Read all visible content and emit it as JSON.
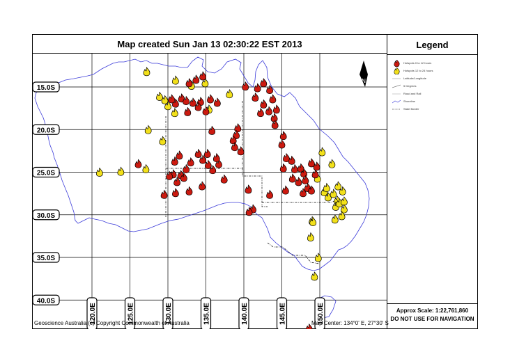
{
  "title": "Map created Sun Jan 13 02:30:22 EST 2013",
  "legend": {
    "title": "Legend",
    "items": [
      {
        "label": "Hotspots 0 to 12 hours",
        "icon": "red-fire-icon"
      },
      {
        "label": "Hotspots 12 to 24 hours",
        "icon": "yellow-fire-icon"
      },
      {
        "label": "Latitude/Longitude",
        "icon": "grid-line-icon"
      },
      {
        "label": "5 Degrees",
        "icon": "grid-line-icon"
      },
      {
        "label": "Road and Rail",
        "icon": "road-line-icon"
      },
      {
        "label": "Shoreline",
        "icon": "shoreline-icon"
      },
      {
        "label": "State Border",
        "icon": "border-line-icon"
      }
    ]
  },
  "scale": {
    "text": "Approx Scale: 1:22,761,860",
    "warning": "DO NOT USE FOR NAVIGATION"
  },
  "credit": "Geoscience Australia (c) Copyright Commonwealth of Australia",
  "center": "Map Center: 134°0' E, 27°30' S",
  "lat_labels": [
    "15.0S",
    "20.0S",
    "25.0S",
    "30.0S",
    "35.0S",
    "40.0S"
  ],
  "lon_labels": [
    "120.0E",
    "125.0E",
    "130.0E",
    "135.0E",
    "140.0E",
    "145.0E",
    "150.0E"
  ],
  "north_arrow": "N",
  "colors": {
    "recent_fire": "#cc1a10",
    "older_fire": "#f2e01a",
    "coastline": "#3b3bd9",
    "grid": "#000000"
  },
  "hotspots_recent": [
    [
      134.6,
      13.7
    ],
    [
      133.7,
      14.1
    ],
    [
      132.8,
      14.5
    ],
    [
      140.2,
      14.9
    ],
    [
      142.6,
      14.5
    ],
    [
      141.8,
      15.1
    ],
    [
      143.4,
      15.3
    ],
    [
      131.8,
      16.3
    ],
    [
      132.4,
      16.6
    ],
    [
      133.3,
      16.8
    ],
    [
      134.3,
      16.7
    ],
    [
      135.6,
      16.4
    ],
    [
      136.5,
      16.8
    ],
    [
      131.0,
      16.9
    ],
    [
      130.5,
      16.4
    ],
    [
      134.0,
      17.3
    ],
    [
      135.0,
      17.8
    ],
    [
      132.6,
      17.9
    ],
    [
      141.5,
      16.2
    ],
    [
      142.6,
      17.0
    ],
    [
      143.3,
      17.8
    ],
    [
      142.2,
      18.0
    ],
    [
      144.0,
      18.6
    ],
    [
      144.3,
      17.6
    ],
    [
      143.8,
      16.4
    ],
    [
      135.8,
      20.1
    ],
    [
      139.2,
      19.8
    ],
    [
      139.0,
      20.6
    ],
    [
      138.6,
      21.2
    ],
    [
      138.8,
      22.0
    ],
    [
      139.6,
      22.5
    ],
    [
      145.2,
      20.7
    ],
    [
      144.1,
      19.4
    ],
    [
      145.0,
      21.7
    ],
    [
      145.6,
      23.3
    ],
    [
      146.3,
      23.6
    ],
    [
      146.7,
      24.6
    ],
    [
      147.5,
      24.5
    ],
    [
      147.9,
      25.1
    ],
    [
      148.1,
      25.9
    ],
    [
      148.4,
      26.8
    ],
    [
      147.8,
      27.4
    ],
    [
      148.9,
      27.1
    ],
    [
      149.4,
      25.2
    ],
    [
      149.6,
      24.3
    ],
    [
      145.2,
      24.5
    ],
    [
      146.4,
      25.7
    ],
    [
      148.9,
      23.9
    ],
    [
      131.5,
      23.0
    ],
    [
      130.9,
      23.7
    ],
    [
      132.4,
      24.6
    ],
    [
      130.7,
      25.2
    ],
    [
      131.7,
      25.3
    ],
    [
      132.1,
      25.6
    ],
    [
      131.2,
      26.1
    ],
    [
      130.2,
      25.4
    ],
    [
      133.0,
      23.8
    ],
    [
      134.6,
      23.5
    ],
    [
      135.9,
      24.7
    ],
    [
      135.3,
      24.1
    ],
    [
      135.2,
      22.8
    ],
    [
      134.0,
      22.8
    ],
    [
      126.1,
      24.0
    ],
    [
      129.5,
      27.6
    ],
    [
      132.8,
      27.2
    ],
    [
      140.6,
      27.0
    ],
    [
      143.4,
      27.6
    ],
    [
      141.2,
      29.3
    ],
    [
      140.7,
      29.6
    ],
    [
      137.4,
      25.8
    ],
    [
      131.0,
      27.4
    ],
    [
      134.5,
      26.6
    ],
    [
      136.7,
      24.0
    ],
    [
      136.4,
      23.3
    ],
    [
      145.5,
      27.1
    ],
    [
      147.2,
      26.1
    ]
  ],
  "hotspots_older": [
    [
      127.2,
      13.2
    ],
    [
      131.0,
      14.2
    ],
    [
      133.1,
      14.8
    ],
    [
      134.9,
      14.5
    ],
    [
      128.9,
      16.1
    ],
    [
      129.6,
      16.5
    ],
    [
      130.0,
      17.2
    ],
    [
      130.9,
      18.0
    ],
    [
      135.4,
      17.6
    ],
    [
      138.1,
      15.8
    ],
    [
      129.3,
      21.3
    ],
    [
      127.4,
      20.0
    ],
    [
      121.0,
      25.0
    ],
    [
      123.8,
      24.9
    ],
    [
      127.1,
      24.6
    ],
    [
      150.3,
      22.6
    ],
    [
      150.6,
      27.3
    ],
    [
      150.9,
      26.8
    ],
    [
      151.1,
      27.9
    ],
    [
      151.8,
      27.5
    ],
    [
      152.3,
      28.3
    ],
    [
      152.1,
      29.0
    ],
    [
      152.6,
      28.6
    ],
    [
      153.0,
      27.2
    ],
    [
      152.4,
      26.6
    ],
    [
      153.2,
      28.4
    ],
    [
      153.2,
      29.3
    ],
    [
      152.9,
      30.1
    ],
    [
      149.0,
      30.7
    ],
    [
      149.7,
      25.7
    ],
    [
      149.1,
      30.8
    ],
    [
      151.6,
      24.0
    ],
    [
      148.8,
      32.6
    ],
    [
      149.8,
      35.0
    ],
    [
      149.3,
      37.2
    ],
    [
      152.0,
      30.5
    ]
  ],
  "hotspots_south": [
    [
      148.6,
      43.3
    ]
  ]
}
